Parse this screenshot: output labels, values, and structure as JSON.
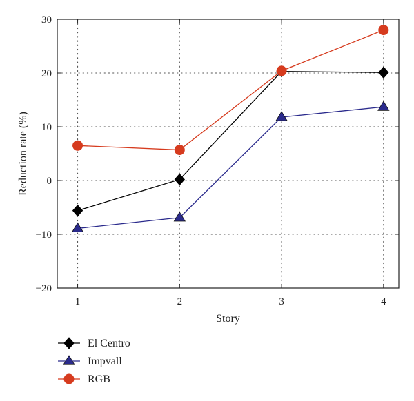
{
  "chart_data": {
    "type": "line",
    "title": "",
    "xlabel": "Story",
    "ylabel": "Reduction rate (%)",
    "x": [
      1,
      2,
      3,
      4
    ],
    "x_tick_labels": [
      "1",
      "2",
      "3",
      "4"
    ],
    "xlim": [
      0.8,
      4.15
    ],
    "ylim": [
      -20,
      30
    ],
    "y_ticks": [
      -20,
      -10,
      0,
      10,
      20,
      30
    ],
    "y_tick_labels": [
      "−20",
      "−10",
      "0",
      "10",
      "20",
      "30"
    ],
    "grid": true,
    "grid_style": "dotted",
    "legend_position": "below-left",
    "series": [
      {
        "name": "El Centro",
        "values": [
          -5.6,
          0.2,
          20.3,
          20.1
        ],
        "color": "#000000",
        "marker": "diamond"
      },
      {
        "name": "Impvall",
        "values": [
          -8.9,
          -6.9,
          11.8,
          13.7
        ],
        "color": "#2a2a8c",
        "marker": "triangle"
      },
      {
        "name": "RGB",
        "values": [
          6.5,
          5.7,
          20.4,
          28.0
        ],
        "color": "#d63b1e",
        "marker": "circle"
      }
    ]
  }
}
